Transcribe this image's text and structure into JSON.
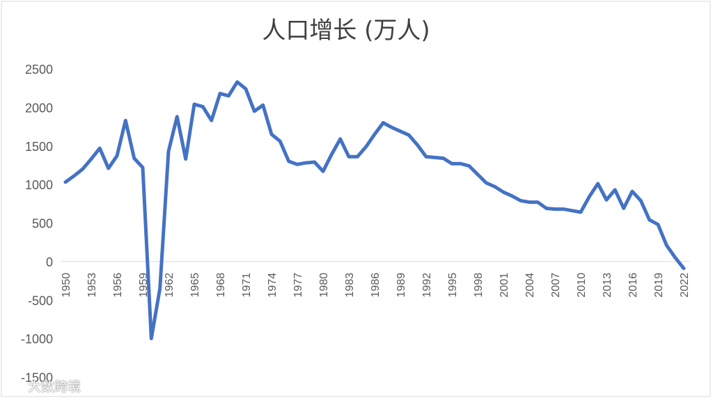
{
  "chart_data": {
    "type": "line",
    "title": "人口增长 (万人)",
    "xlabel": "",
    "ylabel": "",
    "ylim": [
      -1500,
      2500
    ],
    "yticks": [
      2500,
      2000,
      1500,
      1000,
      500,
      0,
      -500,
      -1000,
      -1500
    ],
    "xtick_labels": [
      "1950",
      "1953",
      "1956",
      "1959",
      "1962",
      "1965",
      "1968",
      "1971",
      "1974",
      "1977",
      "1980",
      "1983",
      "1986",
      "1989",
      "1992",
      "1995",
      "1998",
      "2001",
      "2004",
      "2007",
      "2010",
      "2013",
      "2016",
      "2019",
      "2022"
    ],
    "grid": false,
    "legend": "none",
    "series": [
      {
        "color": "#4472c4",
        "x": [
          1950,
          1951,
          1952,
          1953,
          1954,
          1955,
          1956,
          1957,
          1958,
          1959,
          1960,
          1961,
          1962,
          1963,
          1964,
          1965,
          1966,
          1967,
          1968,
          1969,
          1970,
          1971,
          1972,
          1973,
          1974,
          1975,
          1976,
          1977,
          1978,
          1979,
          1980,
          1981,
          1982,
          1983,
          1984,
          1985,
          1986,
          1987,
          1988,
          1989,
          1990,
          1991,
          1992,
          1993,
          1994,
          1995,
          1996,
          1997,
          1998,
          1999,
          2000,
          2001,
          2002,
          2003,
          2004,
          2005,
          2006,
          2007,
          2008,
          2009,
          2010,
          2011,
          2012,
          2013,
          2014,
          2015,
          2016,
          2017,
          2018,
          2019,
          2020,
          2021,
          2022
        ],
        "values": [
          1030,
          1110,
          1200,
          1330,
          1470,
          1210,
          1370,
          1830,
          1340,
          1220,
          -1000,
          -350,
          1430,
          1880,
          1330,
          2040,
          2010,
          1830,
          2180,
          2150,
          2330,
          2240,
          1950,
          2030,
          1650,
          1560,
          1300,
          1260,
          1280,
          1290,
          1170,
          1390,
          1590,
          1360,
          1360,
          1490,
          1650,
          1800,
          1740,
          1690,
          1640,
          1510,
          1360,
          1350,
          1340,
          1270,
          1270,
          1240,
          1130,
          1020,
          970,
          900,
          850,
          790,
          770,
          770,
          690,
          680,
          680,
          660,
          640,
          840,
          1010,
          800,
          930,
          690,
          910,
          790,
          540,
          480,
          210,
          50,
          -90
        ]
      }
    ]
  },
  "watermark": {
    "text": "大数跨境"
  }
}
